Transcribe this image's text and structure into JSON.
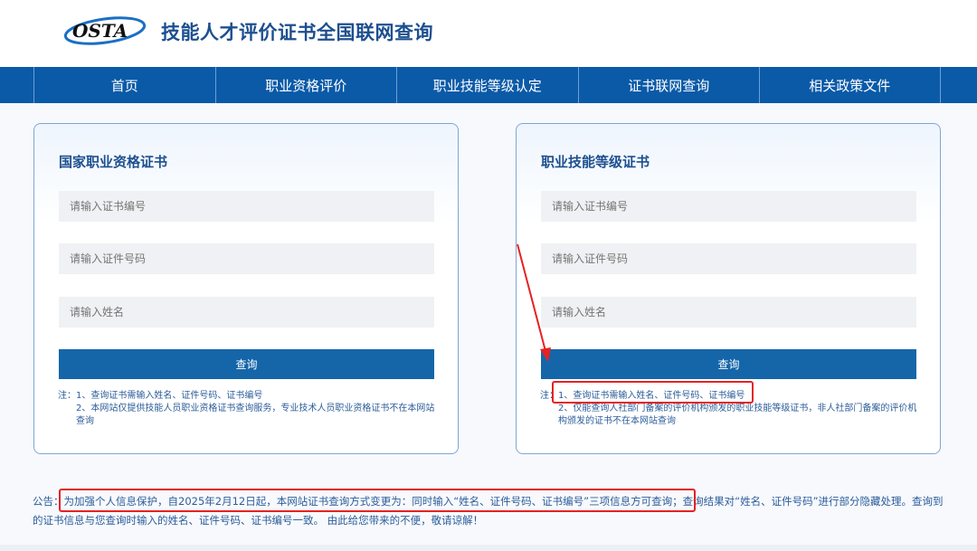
{
  "header": {
    "logo_text": "OSTA",
    "title": "技能人才评价证书全国联网查询"
  },
  "nav": [
    "首页",
    "职业资格评价",
    "职业技能等级认定",
    "证书联网查询",
    "相关政策文件"
  ],
  "cards": [
    {
      "title": "国家职业资格证书",
      "placeholders": [
        "请输入证书编号",
        "请输入证件号码",
        "请输入姓名"
      ],
      "button": "查询",
      "notes": [
        "注：1、查询证书需输入姓名、证件号码、证书编号",
        "2、本网站仅提供技能人员职业资格证书查询服务，专业技术人员职业资格证书不在本网站查询"
      ]
    },
    {
      "title": "职业技能等级证书",
      "placeholders": [
        "请输入证书编号",
        "请输入证件号码",
        "请输入姓名"
      ],
      "button": "查询",
      "notes": [
        "注：1、查询证书需输入姓名、证件号码、证书编号",
        "2、仅能查询人社部门备案的评价机构颁发的职业技能等级证书，非人社部门备案的评价机构颁发的证书不在本网站查询"
      ]
    }
  ],
  "notice": "公告：为加强个人信息保护，自2025年2月12日起，本网站证书查询方式变更为：同时输入“姓名、证件号码、证书编号”三项信息方可查询；查询结果对“姓名、证件号码”进行部分隐藏处理。查询到的证书信息与您查询时输入的姓名、证件号码、证书编号一致。 由此给您带来的不便，敬请谅解！",
  "colors": {
    "nav": "#0a5aa8",
    "button": "#1566a9",
    "annotation": "#e52222"
  }
}
